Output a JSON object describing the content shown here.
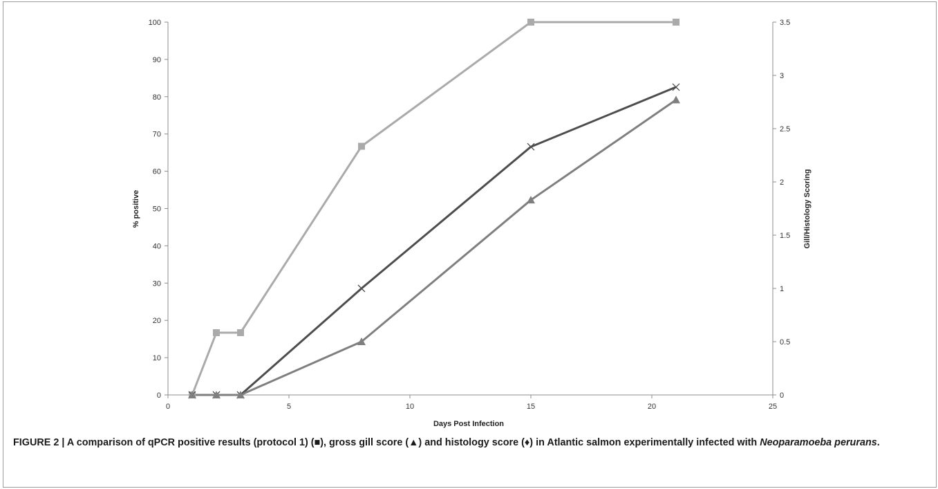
{
  "chart_data": {
    "type": "line",
    "title": "",
    "xlabel": "Days Post Infection",
    "ylabel_left": "% positive",
    "ylabel_right": "Gill/Histology Scoring",
    "xlim": [
      0,
      25
    ],
    "xticks": [
      0,
      5,
      10,
      15,
      20,
      25
    ],
    "ylim_left": [
      0,
      100
    ],
    "yticks_left": [
      0,
      10,
      20,
      30,
      40,
      50,
      60,
      70,
      80,
      90,
      100
    ],
    "ylim_right": [
      0,
      3.5
    ],
    "yticks_right": [
      0,
      0.5,
      1,
      1.5,
      2,
      2.5,
      3,
      3.5
    ],
    "grid": false,
    "legend": "none",
    "series": [
      {
        "marker": "square",
        "axis": "left",
        "color": "#aaaaaa",
        "x": [
          1,
          2,
          3,
          8,
          15,
          21
        ],
        "y": [
          0,
          16.7,
          16.7,
          66.7,
          100,
          100
        ]
      },
      {
        "marker": "cross",
        "axis": "right",
        "color": "#4d4d4d",
        "x": [
          1,
          2,
          3,
          8,
          15,
          21
        ],
        "y": [
          0,
          0,
          0,
          1.0,
          2.33,
          2.89
        ]
      },
      {
        "marker": "triangle",
        "axis": "right",
        "color": "#7f7f7f",
        "x": [
          1,
          2,
          3,
          8,
          15,
          21
        ],
        "y": [
          0,
          0,
          0,
          0.5,
          1.83,
          2.77
        ]
      }
    ]
  },
  "caption": {
    "figure_label": "FIGURE 2 | ",
    "text_main": "A comparison of qPCR positive results (protocol 1) (■), gross gill score (▲) and histology score (♦) in Atlantic salmon experimentally infected with ",
    "species": "Neoparamoeba perurans",
    "end": "."
  }
}
